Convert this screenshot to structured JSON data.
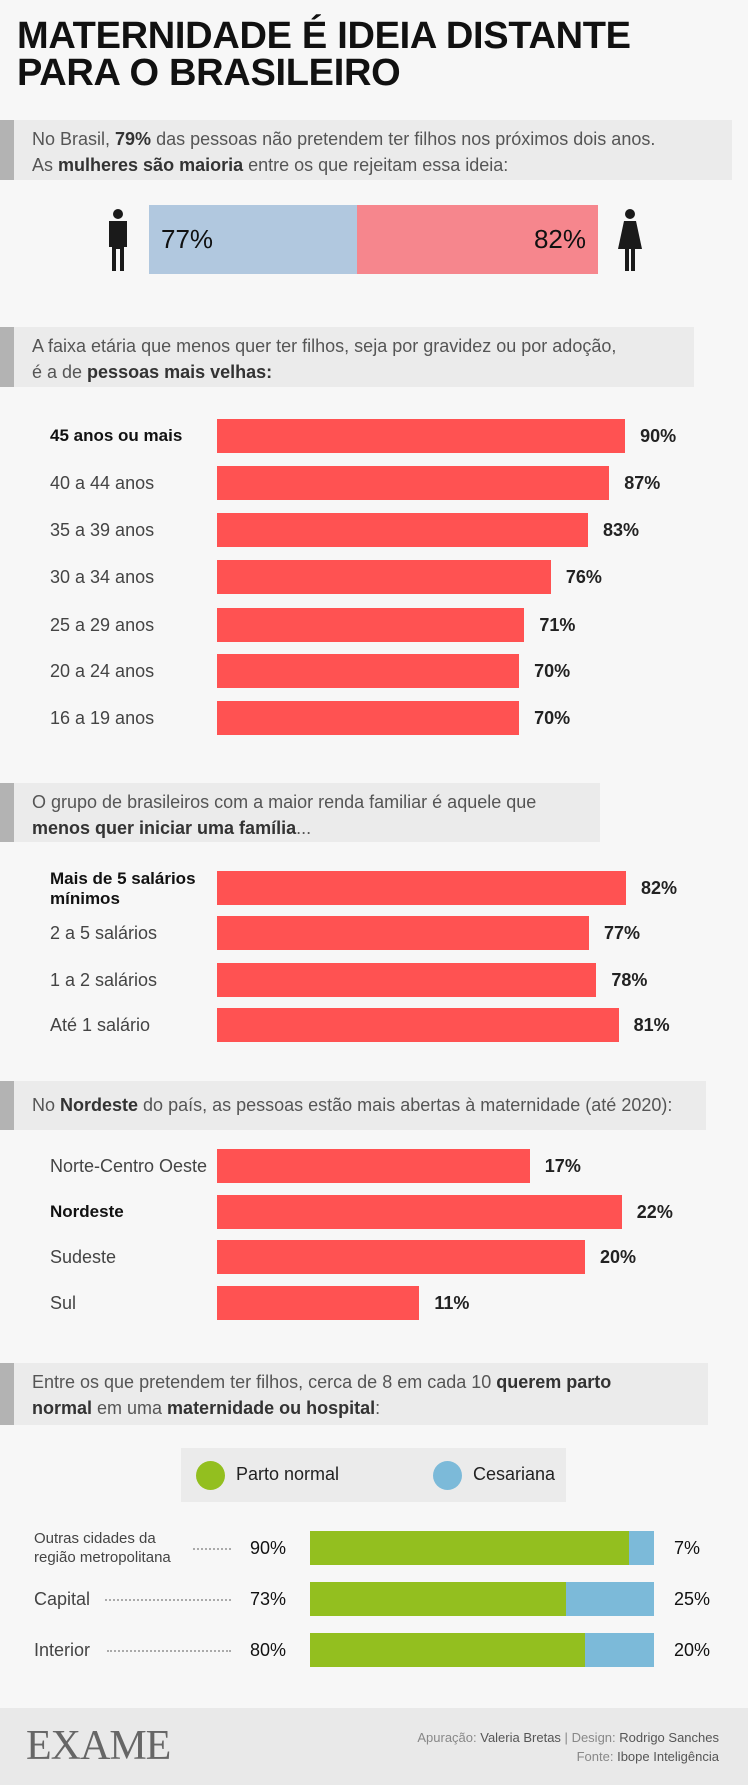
{
  "title": [
    "MATERNIDADE É IDEIA DISTANTE",
    "PARA O BRASILEIRO"
  ],
  "intro": {
    "t1": "No Brasil, ",
    "b1": "79%",
    "t2": " das pessoas não pretendem ter filhos nos próximos dois anos.",
    "t3": "As ",
    "b2": "mulheres são maioria",
    "t4": " entre os que rejeitam essa ideia:"
  },
  "gender": {
    "men": "77%",
    "women": "82%",
    "men_color": "#b1c8df",
    "women_color": "#f6868d",
    "icons": [
      "man-icon",
      "woman-icon"
    ]
  },
  "age_intro": {
    "t1": "A faixa etária que menos quer ter filhos, seja por gravidez ou por adoção,",
    "t2": "é a de ",
    "b1": "pessoas mais velhas:"
  },
  "income_intro": {
    "t1": "O grupo de brasileiros com a maior renda familiar é aquele que",
    "b1": "menos quer iniciar uma família",
    "t2": "..."
  },
  "region_intro": {
    "t1": "No ",
    "b1": "Nordeste",
    "t2": " do país, as pessoas estão mais abertas à maternidade (até 2020):"
  },
  "birth_intro": {
    "t1": "Entre os que pretendem ter filhos, cerca de 8 em cada 10 ",
    "b1": "querem parto",
    "b2": "normal",
    "t2": " em uma ",
    "b3": "maternidade ou hospital",
    ":": ":"
  },
  "chart_data": [
    {
      "type": "bar",
      "orientation": "horizontal",
      "color": "#ff5252",
      "categories": [
        "45 anos ou mais",
        "40 a 44 anos",
        "35 a 39 anos",
        "30 a 34 anos",
        "25 a 29 anos",
        "20 a 24 anos",
        "16 a 19 anos"
      ],
      "values": [
        90,
        87,
        83,
        76,
        71,
        70,
        70
      ],
      "labels": [
        "90%",
        "87%",
        "83%",
        "76%",
        "71%",
        "70%",
        "70%"
      ],
      "highlight": "45 anos ou mais"
    },
    {
      "type": "bar",
      "orientation": "horizontal",
      "color": "#ff5252",
      "categories": [
        "Mais de 5 salários mínimos",
        "2 a 5 salários",
        "1 a 2 salários",
        "Até 1 salário"
      ],
      "values": [
        82,
        77,
        78,
        81
      ],
      "labels": [
        "82%",
        "77%",
        "78%",
        "81%"
      ],
      "highlight": "Mais de 5 salários mínimos"
    },
    {
      "type": "bar",
      "orientation": "horizontal",
      "color": "#ff5252",
      "categories": [
        "Norte-Centro Oeste",
        "Nordeste",
        "Sudeste",
        "Sul"
      ],
      "values": [
        17,
        22,
        20,
        11
      ],
      "labels": [
        "17%",
        "22%",
        "20%",
        "11%"
      ],
      "highlight": "Nordeste"
    },
    {
      "type": "bar",
      "stacked": true,
      "orientation": "horizontal",
      "categories": [
        "Outras cidades da região metropolitana",
        "Capital",
        "Interior"
      ],
      "series": [
        {
          "name": "Parto normal",
          "color": "#93bf1f",
          "values": [
            90,
            73,
            80
          ],
          "labels": [
            "90%",
            "73%",
            "80%"
          ]
        },
        {
          "name": "Cesariana",
          "color": "#7cbad9",
          "values": [
            7,
            25,
            20
          ],
          "labels": [
            "7%",
            "25%",
            "20%"
          ]
        }
      ],
      "legend": "top"
    }
  ],
  "footer": {
    "logo": "EXAME",
    "c1": "Apuração: ",
    "c1v": "Valeria Bretas",
    "sep": "|",
    "c2": "Design: ",
    "c2v": "Rodrigo Sanches",
    "c3": "Fonte: ",
    "c3v": "Ibope Inteligência"
  }
}
